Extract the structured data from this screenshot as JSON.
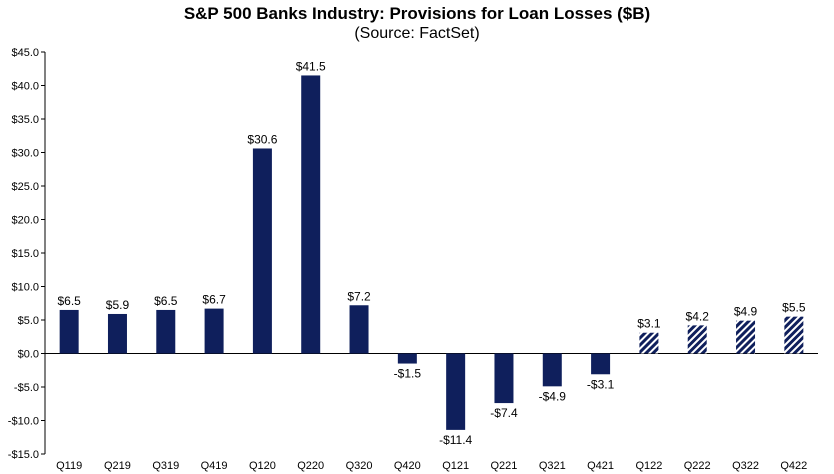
{
  "chart_data": {
    "type": "bar",
    "title": "S&P 500 Banks Industry: Provisions for Loan Losses ($B)",
    "subtitle": "(Source: FactSet)",
    "xlabel": "",
    "ylabel": "",
    "ylim": [
      -15,
      45
    ],
    "yticks": [
      45,
      40,
      35,
      30,
      25,
      20,
      15,
      10,
      5,
      0,
      -5,
      -10,
      -15
    ],
    "ytick_labels": [
      "$45.0",
      "$40.0",
      "$35.0",
      "$30.0",
      "$25.0",
      "$20.0",
      "$15.0",
      "$10.0",
      "$5.0",
      "$0.0",
      "-$5.0",
      "-$10.0",
      "-$15.0"
    ],
    "grid": false,
    "categories": [
      "Q119",
      "Q219",
      "Q319",
      "Q419",
      "Q120",
      "Q220",
      "Q320",
      "Q420",
      "Q121",
      "Q221",
      "Q321",
      "Q421",
      "Q122",
      "Q222",
      "Q322",
      "Q422"
    ],
    "values": [
      6.5,
      5.9,
      6.5,
      6.7,
      30.6,
      41.5,
      7.2,
      -1.5,
      -11.4,
      -7.4,
      -4.9,
      -3.1,
      3.1,
      4.2,
      4.9,
      5.5
    ],
    "data_labels": [
      "$6.5",
      "$5.9",
      "$6.5",
      "$6.7",
      "$30.6",
      "$41.5",
      "$7.2",
      "-$1.5",
      "-$11.4",
      "-$7.4",
      "-$4.9",
      "-$3.1",
      "$3.1",
      "$4.2",
      "$4.9",
      "$5.5"
    ],
    "estimate_flags": [
      false,
      false,
      false,
      false,
      false,
      false,
      false,
      false,
      false,
      false,
      false,
      false,
      true,
      true,
      true,
      true
    ],
    "colors": {
      "actual": "#0f1f5c",
      "estimate": "#0f1f5c",
      "axis": "#000000"
    }
  }
}
